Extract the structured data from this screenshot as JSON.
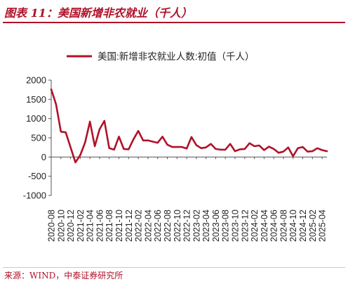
{
  "figure": {
    "title": "图表 11：美国新增非农就业（千人）",
    "source": "来源：WIND，中泰证券研究所"
  },
  "chart_data": {
    "type": "line",
    "legend": [
      "美国:新增非农就业人数:初值（千人）"
    ],
    "legend_position": "top",
    "ylim": [
      -1000,
      2000
    ],
    "yticks": [
      -1000,
      -500,
      0,
      500,
      1000,
      1500,
      2000
    ],
    "xticks": [
      "2020-08",
      "2020-10",
      "2020-12",
      "2021-02",
      "2021-04",
      "2021-06",
      "2021-08",
      "2021-10",
      "2021-12",
      "2022-02",
      "2022-04",
      "2022-06",
      "2022-08",
      "2022-10",
      "2022-12",
      "2023-02",
      "2023-04",
      "2023-06",
      "2023-08",
      "2023-10",
      "2023-12",
      "2024-02",
      "2024-04",
      "2024-06",
      "2024-08",
      "2024-10",
      "2024-12",
      "2025-02",
      "2025-04"
    ],
    "grid": false,
    "color": "#b0122a",
    "x": [
      "2020-08",
      "2020-09",
      "2020-10",
      "2020-11",
      "2020-12",
      "2021-01",
      "2021-02",
      "2021-03",
      "2021-04",
      "2021-05",
      "2021-06",
      "2021-07",
      "2021-08",
      "2021-09",
      "2021-10",
      "2021-11",
      "2021-12",
      "2022-01",
      "2022-02",
      "2022-03",
      "2022-04",
      "2022-05",
      "2022-06",
      "2022-07",
      "2022-08",
      "2022-09",
      "2022-10",
      "2022-11",
      "2022-12",
      "2023-01",
      "2023-02",
      "2023-03",
      "2023-04",
      "2023-05",
      "2023-06",
      "2023-07",
      "2023-08",
      "2023-09",
      "2023-10",
      "2023-11",
      "2023-12",
      "2024-01",
      "2024-02",
      "2024-03",
      "2024-04",
      "2024-05",
      "2024-06",
      "2024-07",
      "2024-08",
      "2024-09",
      "2024-10",
      "2024-11",
      "2024-12",
      "2025-01",
      "2025-02",
      "2025-03",
      "2025-04",
      "2025-05"
    ],
    "series": [
      {
        "values": [
          1760,
          1370,
          660,
          640,
          250,
          -140,
          50,
          380,
          920,
          280,
          720,
          940,
          230,
          190,
          530,
          210,
          200,
          460,
          680,
          430,
          430,
          400,
          370,
          530,
          320,
          260,
          260,
          260,
          220,
          520,
          310,
          230,
          250,
          340,
          210,
          190,
          190,
          340,
          150,
          200,
          210,
          360,
          280,
          300,
          180,
          270,
          210,
          110,
          140,
          250,
          20,
          230,
          260,
          140,
          150,
          230,
          180,
          150
        ]
      }
    ]
  }
}
